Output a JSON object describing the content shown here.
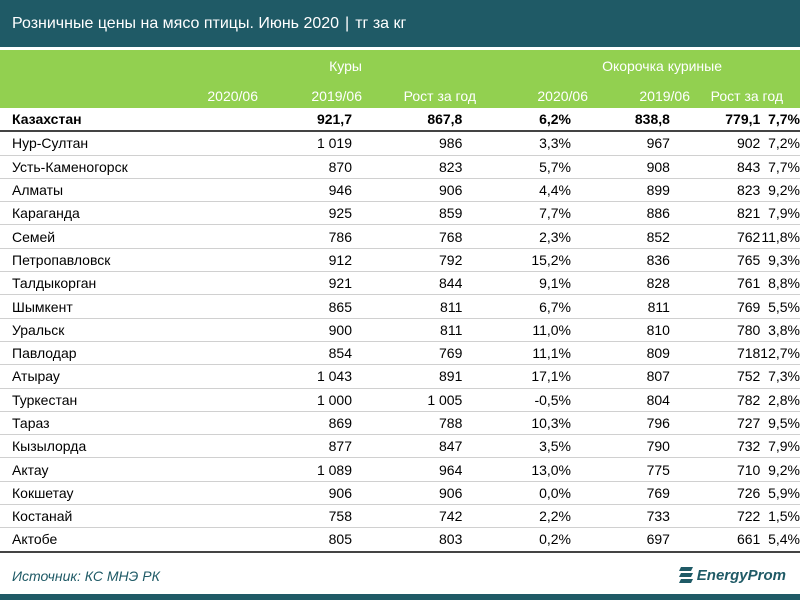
{
  "header": {
    "title": "Розничные цены на мясо птицы. Июнь 2020",
    "separator": "|",
    "unit": "тг за кг"
  },
  "groups": [
    "Куры",
    "Окорочка куриные"
  ],
  "columns": [
    "2020/06",
    "2019/06",
    "Рост за год",
    "2020/06",
    "2019/06",
    "Рост за год"
  ],
  "rows": [
    [
      "Казахстан",
      "921,7",
      "867,8",
      "6,2%",
      "838,8",
      "779,1",
      "7,7%"
    ],
    [
      "Нур-Султан",
      "1 019",
      "986",
      "3,3%",
      "967",
      "902",
      "7,2%"
    ],
    [
      "Усть-Каменогорск",
      "870",
      "823",
      "5,7%",
      "908",
      "843",
      "7,7%"
    ],
    [
      "Алматы",
      "946",
      "906",
      "4,4%",
      "899",
      "823",
      "9,2%"
    ],
    [
      "Караганда",
      "925",
      "859",
      "7,7%",
      "886",
      "821",
      "7,9%"
    ],
    [
      "Семей",
      "786",
      "768",
      "2,3%",
      "852",
      "762",
      "11,8%"
    ],
    [
      "Петропавловск",
      "912",
      "792",
      "15,2%",
      "836",
      "765",
      "9,3%"
    ],
    [
      "Талдыкорган",
      "921",
      "844",
      "9,1%",
      "828",
      "761",
      "8,8%"
    ],
    [
      "Шымкент",
      "865",
      "811",
      "6,7%",
      "811",
      "769",
      "5,5%"
    ],
    [
      "Уральск",
      "900",
      "811",
      "11,0%",
      "810",
      "780",
      "3,8%"
    ],
    [
      "Павлодар",
      "854",
      "769",
      "11,1%",
      "809",
      "718",
      "12,7%"
    ],
    [
      "Атырау",
      "1 043",
      "891",
      "17,1%",
      "807",
      "752",
      "7,3%"
    ],
    [
      "Туркестан",
      "1 000",
      "1 005",
      "-0,5%",
      "804",
      "782",
      "2,8%"
    ],
    [
      "Тараз",
      "869",
      "788",
      "10,3%",
      "796",
      "727",
      "9,5%"
    ],
    [
      "Кызылорда",
      "877",
      "847",
      "3,5%",
      "790",
      "732",
      "7,9%"
    ],
    [
      "Актау",
      "1 089",
      "964",
      "13,0%",
      "775",
      "710",
      "9,2%"
    ],
    [
      "Кокшетау",
      "906",
      "906",
      "0,0%",
      "769",
      "726",
      "5,9%"
    ],
    [
      "Костанай",
      "758",
      "742",
      "2,2%",
      "733",
      "722",
      "1,5%"
    ],
    [
      "Актобе",
      "805",
      "803",
      "0,2%",
      "697",
      "661",
      "5,4%"
    ]
  ],
  "footer": {
    "source": "Источник: КС МНЭ РК",
    "logo": "EnergyProm"
  }
}
